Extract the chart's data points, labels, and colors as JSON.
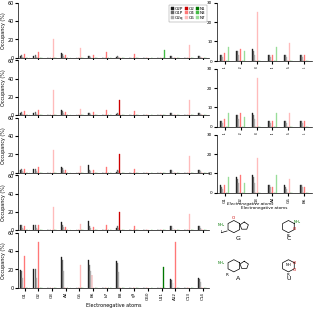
{
  "x_labels": [
    "G1",
    "G2",
    "G3",
    "A4",
    "G5",
    "B6",
    "b7",
    "B8",
    "g9",
    "G60",
    "U11",
    "A12",
    "C13",
    "C14"
  ],
  "n_groups": 14,
  "bar_types": [
    "O2P",
    "O1P",
    "O2q",
    "O2",
    "O4",
    "O6",
    "N1",
    "N3",
    "N7"
  ],
  "colors": {
    "O2P": "#1a1a1a",
    "O1P": "#666666",
    "O2q": "#aaaaaa",
    "O2": "#cc0000",
    "O4": "#ff7777",
    "O6": "#ffbbbb",
    "N1": "#007700",
    "N3": "#44bb44",
    "N7": "#99dd99"
  },
  "hatch_map": {
    "O2P": "",
    "O1P": "////",
    "O2q": "xxxx",
    "O2": "",
    "O4": "////",
    "O6": "xxxx",
    "N1": "",
    "N3": "////",
    "N7": "xxxx"
  },
  "panel1": {
    "O2P": [
      2,
      2,
      0,
      5,
      0,
      2,
      0,
      1,
      0,
      0,
      0,
      2,
      0,
      2
    ],
    "O1P": [
      3,
      3,
      0,
      4,
      0,
      2,
      0,
      2,
      0,
      0,
      0,
      2,
      0,
      2
    ],
    "O2q": [
      1,
      1,
      0,
      2,
      0,
      1,
      0,
      1,
      0,
      0,
      0,
      1,
      0,
      1
    ],
    "O2": [
      0,
      0,
      0,
      0,
      0,
      0,
      0,
      0,
      0,
      0,
      0,
      0,
      0,
      0
    ],
    "O4": [
      4,
      6,
      0,
      3,
      0,
      3,
      6,
      0,
      4,
      0,
      0,
      0,
      0,
      0
    ],
    "O6": [
      0,
      0,
      20,
      0,
      10,
      0,
      0,
      0,
      0,
      0,
      0,
      0,
      14,
      0
    ],
    "N1": [
      0,
      0,
      0,
      0,
      0,
      0,
      0,
      0,
      0,
      0,
      0,
      0,
      0,
      0
    ],
    "N3": [
      0,
      0,
      0,
      0,
      0,
      0,
      0,
      0,
      0,
      0,
      8,
      0,
      0,
      0
    ],
    "N7": [
      0,
      0,
      0,
      0,
      0,
      0,
      0,
      0,
      0,
      0,
      0,
      0,
      0,
      0
    ]
  },
  "panel2": {
    "O2P": [
      2,
      2,
      0,
      5,
      0,
      2,
      0,
      1,
      0,
      0,
      0,
      2,
      0,
      2
    ],
    "O1P": [
      3,
      3,
      0,
      4,
      0,
      2,
      0,
      2,
      0,
      0,
      0,
      2,
      0,
      2
    ],
    "O2q": [
      1,
      1,
      0,
      2,
      0,
      1,
      0,
      1,
      0,
      0,
      0,
      1,
      0,
      1
    ],
    "O2": [
      0,
      0,
      0,
      0,
      0,
      0,
      0,
      17,
      0,
      0,
      0,
      0,
      0,
      0
    ],
    "O4": [
      4,
      6,
      0,
      3,
      0,
      3,
      6,
      0,
      4,
      0,
      0,
      0,
      0,
      0
    ],
    "O6": [
      0,
      0,
      27,
      0,
      7,
      0,
      0,
      0,
      0,
      0,
      0,
      0,
      16,
      0
    ],
    "N1": [
      0,
      0,
      0,
      0,
      0,
      0,
      0,
      0,
      0,
      0,
      0,
      0,
      0,
      0
    ],
    "N3": [
      0,
      0,
      0,
      0,
      0,
      0,
      0,
      0,
      0,
      0,
      0,
      0,
      0,
      0
    ],
    "N7": [
      0,
      0,
      0,
      0,
      0,
      0,
      0,
      0,
      0,
      0,
      0,
      0,
      0,
      0
    ]
  },
  "panel3": {
    "O2P": [
      3,
      4,
      0,
      6,
      0,
      8,
      0,
      1,
      0,
      0,
      0,
      3,
      0,
      3
    ],
    "O1P": [
      4,
      4,
      0,
      5,
      0,
      3,
      0,
      3,
      0,
      0,
      0,
      3,
      0,
      3
    ],
    "O2q": [
      2,
      2,
      0,
      3,
      0,
      2,
      0,
      2,
      0,
      0,
      0,
      2,
      0,
      2
    ],
    "O2": [
      0,
      0,
      0,
      0,
      0,
      0,
      0,
      20,
      0,
      0,
      0,
      0,
      0,
      0
    ],
    "O4": [
      4,
      6,
      0,
      3,
      0,
      3,
      6,
      0,
      4,
      0,
      0,
      0,
      0,
      0
    ],
    "O6": [
      0,
      0,
      25,
      0,
      7,
      0,
      0,
      0,
      0,
      0,
      0,
      0,
      18,
      0
    ],
    "N1": [
      0,
      0,
      0,
      0,
      0,
      0,
      0,
      0,
      0,
      0,
      0,
      0,
      0,
      0
    ],
    "N3": [
      0,
      0,
      0,
      0,
      0,
      0,
      0,
      0,
      0,
      0,
      0,
      0,
      0,
      0
    ],
    "N7": [
      0,
      0,
      0,
      0,
      0,
      0,
      0,
      0,
      0,
      0,
      0,
      0,
      0,
      0
    ]
  },
  "panel4": {
    "O2P": [
      5,
      5,
      0,
      9,
      0,
      10,
      0,
      2,
      0,
      0,
      0,
      4,
      0,
      4
    ],
    "O1P": [
      5,
      5,
      0,
      6,
      0,
      4,
      0,
      4,
      0,
      0,
      0,
      4,
      0,
      4
    ],
    "O2q": [
      2,
      2,
      0,
      3,
      0,
      2,
      0,
      2,
      0,
      0,
      0,
      2,
      0,
      2
    ],
    "O2": [
      0,
      0,
      0,
      0,
      0,
      0,
      0,
      20,
      0,
      0,
      0,
      0,
      0,
      0
    ],
    "O4": [
      4,
      6,
      0,
      3,
      0,
      3,
      6,
      0,
      4,
      0,
      0,
      0,
      0,
      0
    ],
    "O6": [
      0,
      0,
      25,
      0,
      7,
      0,
      0,
      0,
      0,
      0,
      0,
      0,
      18,
      0
    ],
    "N1": [
      0,
      0,
      0,
      0,
      0,
      0,
      0,
      0,
      0,
      0,
      0,
      0,
      0,
      0
    ],
    "N3": [
      0,
      0,
      0,
      0,
      0,
      0,
      0,
      0,
      0,
      0,
      0,
      0,
      0,
      0
    ],
    "N7": [
      0,
      0,
      0,
      0,
      0,
      0,
      0,
      0,
      0,
      0,
      0,
      0,
      0,
      0
    ]
  },
  "panel5": {
    "O2P": [
      19,
      20,
      0,
      34,
      0,
      30,
      0,
      29,
      0,
      0,
      0,
      9,
      0,
      10
    ],
    "O1P": [
      18,
      20,
      0,
      30,
      0,
      25,
      0,
      27,
      0,
      0,
      0,
      8,
      0,
      9
    ],
    "O2q": [
      10,
      11,
      0,
      18,
      0,
      18,
      0,
      17,
      0,
      0,
      0,
      5,
      0,
      6
    ],
    "O2": [
      0,
      0,
      0,
      0,
      0,
      14,
      0,
      0,
      0,
      0,
      0,
      0,
      0,
      0
    ],
    "O4": [
      35,
      50,
      0,
      0,
      0,
      0,
      0,
      0,
      0,
      0,
      0,
      50,
      0,
      0
    ],
    "O6": [
      0,
      0,
      0,
      0,
      25,
      0,
      0,
      0,
      0,
      0,
      0,
      0,
      0,
      0
    ],
    "N1": [
      0,
      0,
      0,
      0,
      0,
      0,
      0,
      0,
      0,
      0,
      23,
      0,
      0,
      0
    ],
    "N3": [
      0,
      0,
      0,
      0,
      0,
      0,
      0,
      0,
      0,
      0,
      0,
      0,
      0,
      0
    ],
    "N7": [
      0,
      0,
      0,
      0,
      0,
      0,
      0,
      0,
      0,
      0,
      0,
      0,
      0,
      0
    ]
  },
  "zoom1": {
    "labels": [
      "G1",
      "G2",
      "G3",
      "A4",
      "G5",
      "B6"
    ],
    "O2P": [
      3,
      5,
      6,
      3,
      3,
      3
    ],
    "O1P": [
      3,
      5,
      5,
      3,
      3,
      3
    ],
    "O2q": [
      2,
      3,
      3,
      2,
      2,
      2
    ],
    "O2": [
      0,
      0,
      0,
      0,
      0,
      0
    ],
    "O4": [
      4,
      6,
      0,
      3,
      0,
      3
    ],
    "O6": [
      0,
      0,
      25,
      0,
      9,
      0
    ],
    "N1": [
      0,
      0,
      0,
      0,
      0,
      0
    ],
    "N3": [
      0,
      0,
      0,
      0,
      0,
      0
    ],
    "N7": [
      7,
      5,
      0,
      7,
      0,
      0
    ]
  },
  "zoom2": {
    "labels": [
      "G1",
      "G2",
      "G3",
      "A4",
      "G5",
      "B6"
    ],
    "O2P": [
      3,
      6,
      7,
      3,
      3,
      3
    ],
    "O1P": [
      3,
      6,
      6,
      3,
      3,
      3
    ],
    "O2q": [
      2,
      4,
      4,
      2,
      2,
      2
    ],
    "O2": [
      0,
      0,
      0,
      0,
      0,
      0
    ],
    "O4": [
      4,
      7,
      0,
      3,
      0,
      3
    ],
    "O6": [
      0,
      0,
      25,
      0,
      7,
      0
    ],
    "N1": [
      0,
      0,
      0,
      0,
      0,
      0
    ],
    "N3": [
      0,
      0,
      0,
      0,
      0,
      0
    ],
    "N7": [
      7,
      5,
      0,
      7,
      0,
      0
    ]
  },
  "zoom3": {
    "labels": [
      "G1",
      "G2",
      "G3",
      "A4",
      "G5",
      "B6"
    ],
    "O2P": [
      4,
      8,
      9,
      4,
      4,
      4
    ],
    "O1P": [
      3,
      7,
      8,
      4,
      3,
      4
    ],
    "O2q": [
      2,
      5,
      5,
      3,
      2,
      3
    ],
    "O2": [
      0,
      0,
      0,
      0,
      0,
      0
    ],
    "O4": [
      4,
      9,
      0,
      3,
      0,
      3
    ],
    "O6": [
      0,
      0,
      18,
      0,
      7,
      0
    ],
    "N1": [
      0,
      0,
      0,
      0,
      0,
      0
    ],
    "N3": [
      0,
      0,
      0,
      0,
      0,
      0
    ],
    "N7": [
      8,
      5,
      0,
      9,
      0,
      0
    ]
  },
  "ylim_main": 60,
  "ylim_zoom": 30,
  "yticks_main": [
    0,
    20,
    40,
    60
  ],
  "yticks_zoom": [
    0,
    10,
    20,
    30
  ]
}
